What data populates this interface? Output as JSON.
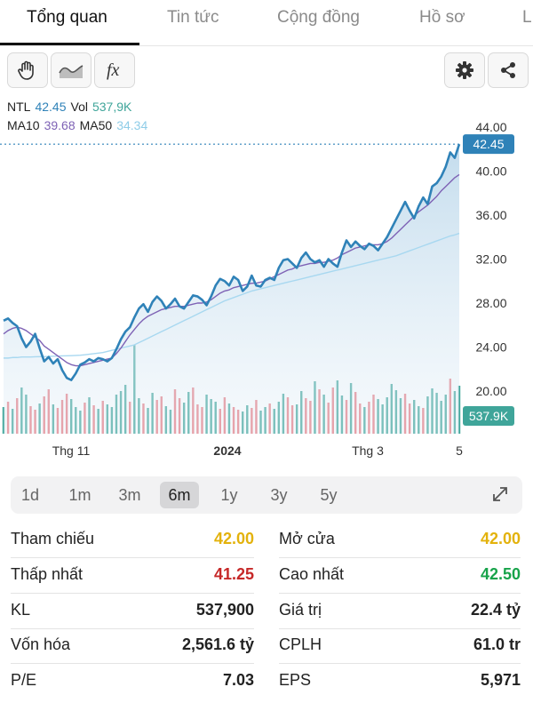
{
  "tabs": [
    "Tổng quan",
    "Tin tức",
    "Cộng đồng",
    "Hồ sơ",
    "L"
  ],
  "toolbar": {
    "left_icons": [
      "hand-icon",
      "line-style-icon",
      "function-icon"
    ],
    "fx_label": "fx",
    "right_icons": [
      "gear-icon",
      "share-icon"
    ]
  },
  "legend": {
    "symbol": "NTL",
    "price": "42.45",
    "vol_label": "Vol",
    "vol": "537,9K",
    "ma10_label": "MA10",
    "ma10": "39.68",
    "ma50_label": "MA50",
    "ma50": "34.34"
  },
  "colors": {
    "price_line": "#2f82b8",
    "ma10": "#7e62b5",
    "ma50": "#a8d8f0",
    "up": "#3fa59a",
    "down": "#e87880",
    "label_bg": "#2f82b8",
    "vol_label_bg": "#3fa59a"
  },
  "chart_data": {
    "type": "line",
    "yticks": [
      "44.00",
      "40.00",
      "36.00",
      "32.00",
      "28.00",
      "24.00",
      "20.00"
    ],
    "ylim": [
      19.5,
      44.0
    ],
    "xticks": [
      "Thg 11",
      "2024",
      "Thg 3",
      "5"
    ],
    "last_price_label": "42.45",
    "last_volume_label": "537.9K",
    "series": [
      {
        "name": "NTL",
        "values": [
          26.4,
          26.6,
          26.2,
          25.9,
          24.8,
          24.0,
          24.5,
          25.2,
          23.9,
          22.7,
          23.1,
          22.5,
          22.9,
          21.9,
          21.2,
          21.0,
          21.6,
          22.4,
          22.6,
          22.9,
          22.7,
          23.0,
          22.9,
          22.7,
          23.0,
          23.8,
          24.7,
          25.4,
          25.8,
          26.7,
          27.5,
          27.9,
          27.2,
          28.1,
          28.6,
          28.2,
          27.5,
          27.9,
          28.4,
          27.7,
          27.5,
          28.1,
          28.7,
          28.6,
          28.3,
          27.8,
          28.6,
          29.6,
          30.2,
          30.0,
          29.6,
          30.4,
          30.1,
          29.1,
          29.5,
          30.5,
          29.6,
          29.5,
          30.1,
          30.3,
          30.1,
          31.2,
          31.9,
          32.0,
          31.6,
          31.2,
          32.1,
          32.6,
          32.0,
          31.7,
          31.9,
          31.3,
          32.0,
          31.6,
          31.3,
          32.6,
          33.7,
          33.1,
          33.6,
          33.2,
          32.9,
          33.4,
          33.2,
          32.8,
          33.4,
          34.0,
          34.8,
          35.6,
          36.4,
          37.2,
          36.4,
          35.7,
          36.8,
          37.6,
          37.0,
          38.6,
          38.9,
          39.5,
          40.4,
          41.7,
          41.2,
          42.45
        ]
      },
      {
        "name": "MA10",
        "values": [
          25.2,
          25.5,
          25.7,
          25.8,
          25.7,
          25.5,
          25.2,
          24.9,
          24.6,
          24.1,
          23.8,
          23.5,
          23.2,
          22.9,
          22.6,
          22.4,
          22.3,
          22.3,
          22.4,
          22.5,
          22.6,
          22.7,
          22.8,
          22.9,
          23.0,
          23.4,
          23.9,
          24.5,
          25.1,
          25.6,
          26.1,
          26.5,
          26.8,
          27.0,
          27.2,
          27.4,
          27.5,
          27.6,
          27.7,
          27.7,
          27.7,
          27.8,
          27.9,
          28.0,
          28.0,
          28.1,
          28.3,
          28.6,
          28.9,
          29.1,
          29.2,
          29.4,
          29.5,
          29.6,
          29.7,
          29.8,
          29.8,
          29.9,
          30.0,
          30.2,
          30.4,
          30.6,
          30.8,
          31.0,
          31.1,
          31.3,
          31.4,
          31.5,
          31.6,
          31.6,
          31.7,
          31.7,
          31.8,
          31.9,
          32.1,
          32.4,
          32.6,
          32.8,
          33.0,
          33.1,
          33.2,
          33.3,
          33.3,
          33.3,
          33.4,
          33.6,
          33.9,
          34.3,
          34.7,
          35.1,
          35.5,
          35.9,
          36.3,
          36.6,
          36.9,
          37.3,
          37.7,
          38.2,
          38.6,
          39.0,
          39.4,
          39.68
        ]
      },
      {
        "name": "MA50",
        "values": [
          23.0,
          23.0,
          23.05,
          23.05,
          23.1,
          23.1,
          23.1,
          23.12,
          23.13,
          23.14,
          23.15,
          23.17,
          23.18,
          23.2,
          23.21,
          23.22,
          23.24,
          23.26,
          23.3,
          23.35,
          23.4,
          23.45,
          23.5,
          23.6,
          23.7,
          23.8,
          23.9,
          24.0,
          24.1,
          24.2,
          24.4,
          24.6,
          24.8,
          25.0,
          25.2,
          25.4,
          25.6,
          25.8,
          26.0,
          26.2,
          26.4,
          26.6,
          26.8,
          27.0,
          27.2,
          27.4,
          27.6,
          27.8,
          28.0,
          28.2,
          28.35,
          28.5,
          28.65,
          28.8,
          28.95,
          29.1,
          29.2,
          29.3,
          29.4,
          29.5,
          29.6,
          29.7,
          29.8,
          29.9,
          30.0,
          30.1,
          30.2,
          30.3,
          30.4,
          30.5,
          30.6,
          30.7,
          30.8,
          30.9,
          31.0,
          31.1,
          31.2,
          31.3,
          31.4,
          31.5,
          31.6,
          31.7,
          31.8,
          31.9,
          32.0,
          32.1,
          32.2,
          32.3,
          32.45,
          32.6,
          32.75,
          32.9,
          33.05,
          33.2,
          33.35,
          33.5,
          33.65,
          33.8,
          33.95,
          34.1,
          34.2,
          34.34
        ]
      }
    ],
    "volumes": [
      0.3,
      0.36,
      0.28,
      0.4,
      0.52,
      0.44,
      0.31,
      0.27,
      0.34,
      0.42,
      0.5,
      0.33,
      0.29,
      0.38,
      0.45,
      0.39,
      0.3,
      0.26,
      0.35,
      0.41,
      0.32,
      0.28,
      0.37,
      0.33,
      0.3,
      0.44,
      0.48,
      0.55,
      0.36,
      1.0,
      0.4,
      0.34,
      0.29,
      0.46,
      0.38,
      0.42,
      0.31,
      0.27,
      0.5,
      0.4,
      0.35,
      0.47,
      0.52,
      0.33,
      0.3,
      0.44,
      0.39,
      0.36,
      0.28,
      0.41,
      0.34,
      0.3,
      0.27,
      0.25,
      0.32,
      0.29,
      0.38,
      0.26,
      0.3,
      0.34,
      0.28,
      0.36,
      0.45,
      0.41,
      0.32,
      0.33,
      0.48,
      0.4,
      0.37,
      0.59,
      0.5,
      0.44,
      0.35,
      0.52,
      0.6,
      0.43,
      0.38,
      0.57,
      0.47,
      0.34,
      0.3,
      0.36,
      0.44,
      0.39,
      0.33,
      0.41,
      0.56,
      0.49,
      0.4,
      0.45,
      0.34,
      0.38,
      0.31,
      0.29,
      0.42,
      0.51,
      0.46,
      0.37,
      0.44,
      0.62,
      0.48,
      0.54
    ],
    "volume_up": [
      1,
      0,
      1,
      0,
      1,
      1,
      0,
      0,
      1,
      0,
      0,
      1,
      0,
      0,
      0,
      1,
      1,
      1,
      0,
      1,
      0,
      1,
      0,
      1,
      1,
      1,
      1,
      1,
      0,
      1,
      1,
      0,
      1,
      1,
      0,
      0,
      1,
      1,
      0,
      0,
      1,
      1,
      0,
      0,
      0,
      1,
      1,
      1,
      0,
      0,
      1,
      0,
      0,
      1,
      1,
      0,
      0,
      1,
      1,
      0,
      1,
      1,
      1,
      0,
      0,
      1,
      1,
      0,
      0,
      1,
      0,
      1,
      0,
      0,
      1,
      1,
      0,
      1,
      0,
      0,
      1,
      0,
      0,
      1,
      1,
      1,
      1,
      1,
      1,
      0,
      0,
      1,
      1,
      0,
      1,
      1,
      1,
      1,
      1,
      0,
      1,
      1
    ]
  },
  "range_selector": {
    "options": [
      "1d",
      "1m",
      "3m",
      "6m",
      "1y",
      "3y",
      "5y"
    ],
    "selected": "6m"
  },
  "stats": {
    "left": [
      {
        "label": "Tham chiếu",
        "value": "42.00",
        "tone": "yellow"
      },
      {
        "label": "Thấp nhất",
        "value": "41.25",
        "tone": "red"
      },
      {
        "label": "KL",
        "value": "537,900",
        "tone": ""
      },
      {
        "label": "Vốn hóa",
        "value": "2,561.6 tỷ",
        "tone": ""
      },
      {
        "label": "P/E",
        "value": "7.03",
        "tone": ""
      }
    ],
    "right": [
      {
        "label": "Mở cửa",
        "value": "42.00",
        "tone": "yellow"
      },
      {
        "label": "Cao nhất",
        "value": "42.50",
        "tone": "green"
      },
      {
        "label": "Giá trị",
        "value": "22.4 tỷ",
        "tone": ""
      },
      {
        "label": "CPLH",
        "value": "61.0 tr",
        "tone": ""
      },
      {
        "label": "EPS",
        "value": "5,971",
        "tone": ""
      }
    ]
  }
}
